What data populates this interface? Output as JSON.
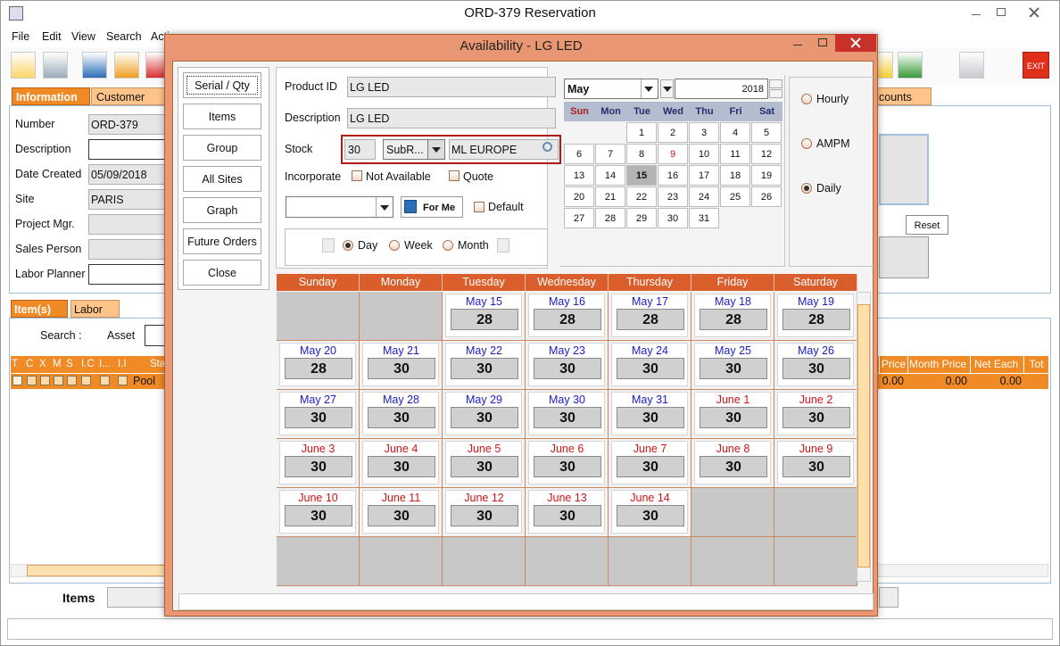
{
  "window": {
    "title": "ORD-379 Reservation",
    "menu": [
      "File",
      "Edit",
      "View",
      "Search",
      "Acti"
    ],
    "exit": "EXIT",
    "tabs": [
      "Information",
      "Customer"
    ],
    "tab_right": "counts",
    "fields": [
      {
        "label": "Number",
        "value": "ORD-379",
        "editable": false
      },
      {
        "label": "Description",
        "editable": true
      },
      {
        "label": "Date Created",
        "value": "05/09/2018",
        "editable": false
      },
      {
        "label": "Site",
        "value": "PARIS",
        "editable": false
      },
      {
        "label": "Project Mgr.",
        "editable": false
      },
      {
        "label": "Sales Person",
        "editable": false
      },
      {
        "label": "Labor Planner",
        "editable": true
      }
    ],
    "reset": "Reset",
    "item_tabs": [
      "Item(s)",
      "Labor"
    ],
    "search_label": "Search :",
    "asset_label": "Asset",
    "grid_headers_left": [
      "T",
      "C",
      "X",
      "M",
      "S",
      "I.C",
      "I...",
      "I.I",
      "Sta"
    ],
    "grid_headers_right": [
      "Price",
      "Month Price",
      "Net Each",
      "Tot"
    ],
    "row": {
      "status": "Pool",
      "values": [
        "0.00",
        "0.00",
        "0.00"
      ]
    },
    "items_label": "Items"
  },
  "dialog": {
    "title": "Availability - LG LED",
    "buttons": [
      "Serial / Qty",
      "Items",
      "Group",
      "All Sites",
      "Graph",
      "Future Orders",
      "Close"
    ],
    "product_id": {
      "label": "Product ID",
      "value": "LG LED"
    },
    "description": {
      "label": "Description",
      "value": "LG LED"
    },
    "stock": {
      "label": "Stock",
      "qty": 30,
      "subr": "SubR...",
      "location": "ML EUROPE"
    },
    "incorporate": {
      "label": "Incorporate",
      "options": [
        "Not Available",
        "Quote"
      ]
    },
    "for_me": "For Me",
    "default": "Default",
    "views": {
      "options": [
        "Day",
        "Week",
        "Month"
      ],
      "selected": 0
    },
    "mini_calendar": {
      "month": "May",
      "year": 2018,
      "weekdays": [
        "Sun",
        "Mon",
        "Tue",
        "Wed",
        "Thu",
        "Fri",
        "Sat"
      ],
      "weeks": [
        [
          null,
          null,
          1,
          2,
          3,
          4,
          5
        ],
        [
          6,
          7,
          8,
          9,
          10,
          11,
          12
        ],
        [
          13,
          14,
          15,
          16,
          17,
          18,
          19
        ],
        [
          20,
          21,
          22,
          23,
          24,
          25,
          26
        ],
        [
          27,
          28,
          29,
          30,
          31
        ]
      ],
      "selected_day": 15,
      "marked_day": 9
    },
    "modes": {
      "options": [
        "Hourly",
        "AMPM",
        "Daily"
      ],
      "selected": 2
    },
    "calendar": {
      "weekdays": [
        "Sunday",
        "Monday",
        "Tuesday",
        "Wednesday",
        "Thursday",
        "Friday",
        "Saturday"
      ],
      "weeks": [
        [
          null,
          null,
          {
            "date": "May 15",
            "qty": 28,
            "color": "#1c1cc4"
          },
          {
            "date": "May 16",
            "qty": 28,
            "color": "#1c1cc4"
          },
          {
            "date": "May 17",
            "qty": 28,
            "color": "#1c1cc4"
          },
          {
            "date": "May 18",
            "qty": 28,
            "color": "#1c1cc4"
          },
          {
            "date": "May 19",
            "qty": 28,
            "color": "#1c1cc4"
          }
        ],
        [
          {
            "date": "May 20",
            "qty": 28,
            "color": "#1c1cc4"
          },
          {
            "date": "May 21",
            "qty": 30,
            "color": "#1c1cc4"
          },
          {
            "date": "May 22",
            "qty": 30,
            "color": "#1c1cc4"
          },
          {
            "date": "May 23",
            "qty": 30,
            "color": "#1c1cc4"
          },
          {
            "date": "May 24",
            "qty": 30,
            "color": "#1c1cc4"
          },
          {
            "date": "May 25",
            "qty": 30,
            "color": "#1c1cc4"
          },
          {
            "date": "May 26",
            "qty": 30,
            "color": "#1c1cc4"
          }
        ],
        [
          {
            "date": "May 27",
            "qty": 30,
            "color": "#1c1cc4"
          },
          {
            "date": "May 28",
            "qty": 30,
            "color": "#1c1cc4"
          },
          {
            "date": "May 29",
            "qty": 30,
            "color": "#1c1cc4"
          },
          {
            "date": "May 30",
            "qty": 30,
            "color": "#1c1cc4"
          },
          {
            "date": "May 31",
            "qty": 30,
            "color": "#1c1cc4"
          },
          {
            "date": "June 1",
            "qty": 30,
            "color": "#d01414"
          },
          {
            "date": "June 2",
            "qty": 30,
            "color": "#d01414"
          }
        ],
        [
          {
            "date": "June 3",
            "qty": 30,
            "color": "#d01414"
          },
          {
            "date": "June 4",
            "qty": 30,
            "color": "#d01414"
          },
          {
            "date": "June 5",
            "qty": 30,
            "color": "#d01414"
          },
          {
            "date": "June 6",
            "qty": 30,
            "color": "#d01414"
          },
          {
            "date": "June 7",
            "qty": 30,
            "color": "#d01414"
          },
          {
            "date": "June 8",
            "qty": 30,
            "color": "#d01414"
          },
          {
            "date": "June 9",
            "qty": 30,
            "color": "#d01414"
          }
        ],
        [
          {
            "date": "June 10",
            "qty": 30,
            "color": "#d01414"
          },
          {
            "date": "June 11",
            "qty": 30,
            "color": "#d01414"
          },
          {
            "date": "June 12",
            "qty": 30,
            "color": "#d01414"
          },
          {
            "date": "June 13",
            "qty": 30,
            "color": "#d01414"
          },
          {
            "date": "June 14",
            "qty": 30,
            "color": "#d01414"
          }
        ]
      ]
    }
  }
}
